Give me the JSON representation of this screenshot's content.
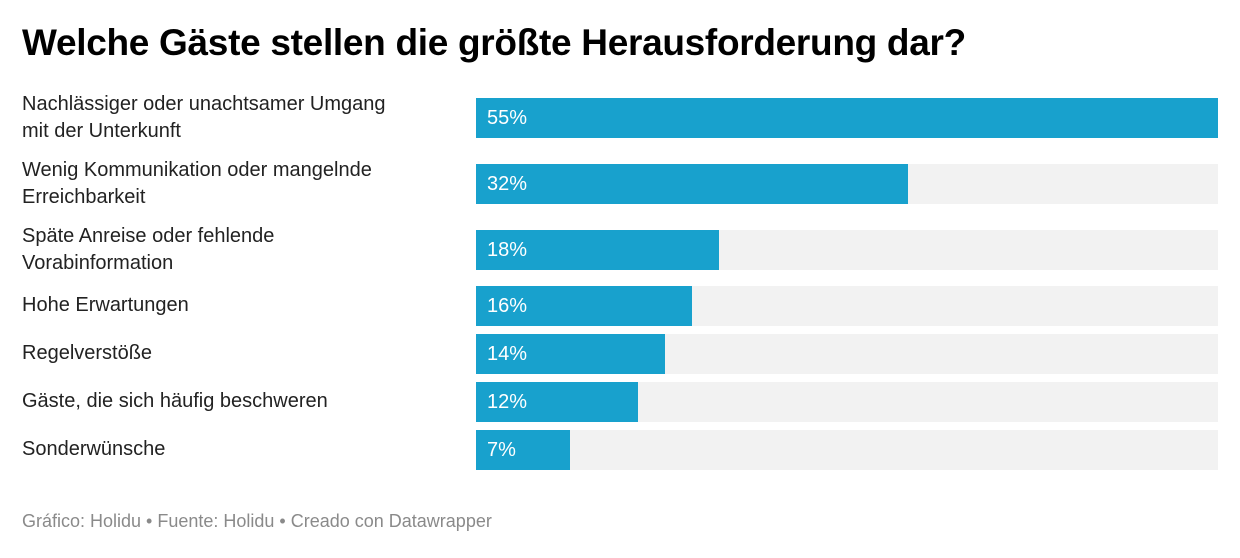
{
  "colors": {
    "bar": "#18a1cd",
    "track": "#f2f2f2"
  },
  "chart_data": {
    "type": "bar",
    "orientation": "horizontal",
    "title": "Welche Gäste stellen die größte Herausforderung dar?",
    "xlabel": "",
    "ylabel": "",
    "xlim": [
      0,
      55
    ],
    "grid": false,
    "categories": [
      "Nachlässiger oder unachtsamer Umgang mit der Unterkunft",
      "Wenig Kommunikation oder mangelnde Erreichbarkeit",
      "Späte Anreise oder fehlende Vorabinformation",
      "Hohe Erwartungen",
      "Regelverstöße",
      "Gäste, die sich häufig beschweren",
      "Sonderwünsche"
    ],
    "values": [
      55,
      32,
      18,
      16,
      14,
      12,
      7
    ],
    "value_labels": [
      "55%",
      "32%",
      "18%",
      "16%",
      "14%",
      "12%",
      "7%"
    ],
    "rows": [
      {
        "label_lines": [
          "Nachlässiger oder unachtsamer Umgang",
          "mit der Unterkunft"
        ],
        "value": 55,
        "value_label": "55%"
      },
      {
        "label_lines": [
          "Wenig Kommunikation oder mangelnde",
          "Erreichbarkeit"
        ],
        "value": 32,
        "value_label": "32%"
      },
      {
        "label_lines": [
          "Späte Anreise oder fehlende",
          "Vorabinformation"
        ],
        "value": 18,
        "value_label": "18%"
      },
      {
        "label_lines": [
          "Hohe Erwartungen"
        ],
        "value": 16,
        "value_label": "16%"
      },
      {
        "label_lines": [
          "Regelverstöße"
        ],
        "value": 14,
        "value_label": "14%"
      },
      {
        "label_lines": [
          "Gäste, die sich häufig beschweren"
        ],
        "value": 12,
        "value_label": "12%"
      },
      {
        "label_lines": [
          "Sonderwünsche"
        ],
        "value": 7,
        "value_label": "7%"
      }
    ],
    "footer": "Gráfico: Holidu • Fuente: Holidu • Creado con Datawrapper"
  }
}
